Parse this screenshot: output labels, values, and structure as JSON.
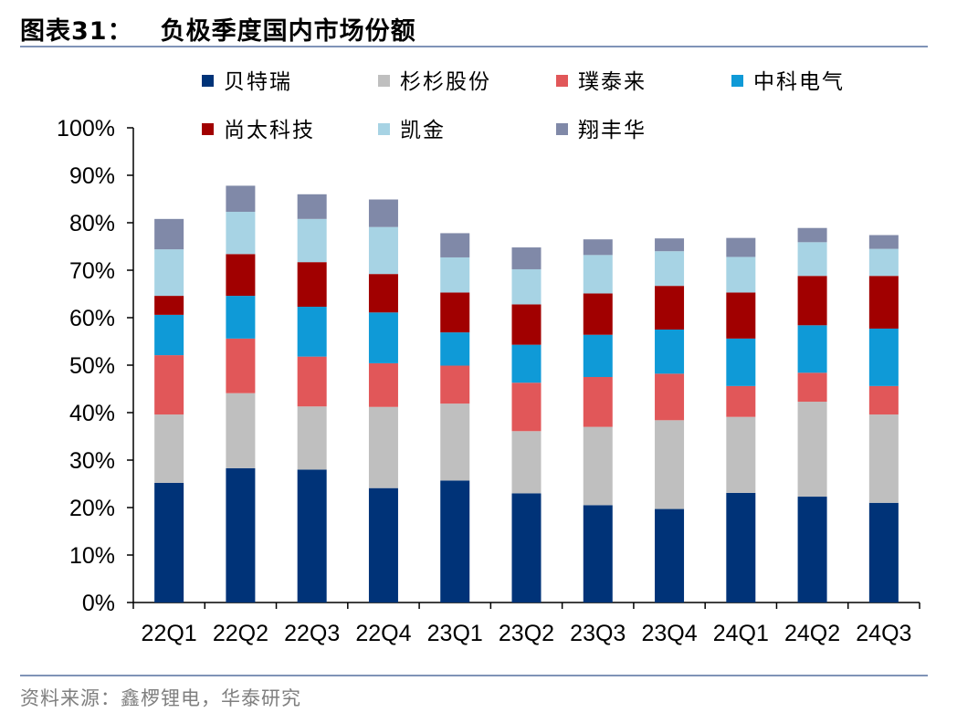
{
  "figure": {
    "label": "图表31：",
    "title": "负极季度国内市场份额",
    "source": "资料来源：鑫椤锂电，华泰研究"
  },
  "chart_data": {
    "type": "bar",
    "stacked": true,
    "title": "负极季度国内市场份额",
    "xlabel": "",
    "ylabel": "",
    "ylim": [
      0,
      100
    ],
    "y_ticks": [
      0,
      10,
      20,
      30,
      40,
      50,
      60,
      70,
      80,
      90,
      100
    ],
    "y_tick_labels": [
      "0%",
      "10%",
      "20%",
      "30%",
      "40%",
      "50%",
      "60%",
      "70%",
      "80%",
      "90%",
      "100%"
    ],
    "grid": false,
    "legend_position": "top",
    "categories": [
      "22Q1",
      "22Q2",
      "22Q3",
      "22Q4",
      "23Q1",
      "23Q2",
      "23Q3",
      "23Q4",
      "24Q1",
      "24Q2",
      "24Q3"
    ],
    "series": [
      {
        "name": "贝特瑞",
        "color": "#003378",
        "values": [
          25.2,
          28.3,
          28.0,
          24.1,
          25.7,
          23.0,
          20.5,
          19.7,
          23.1,
          22.3,
          21.0
        ]
      },
      {
        "name": "杉杉股份",
        "color": "#bfbfbf",
        "values": [
          14.4,
          15.8,
          13.3,
          17.1,
          16.2,
          13.1,
          16.5,
          18.7,
          16.0,
          20.0,
          18.6
        ]
      },
      {
        "name": "璞泰来",
        "color": "#e15759",
        "values": [
          12.5,
          11.5,
          10.5,
          9.2,
          8.0,
          10.2,
          10.5,
          9.8,
          6.5,
          6.1,
          6.0
        ]
      },
      {
        "name": "中科电气",
        "color": "#0f9ad7",
        "values": [
          8.5,
          9.0,
          10.5,
          10.7,
          7.0,
          8.0,
          8.9,
          9.3,
          10.0,
          10.0,
          12.1
        ]
      },
      {
        "name": "尚太科技",
        "color": "#a10000",
        "values": [
          4.0,
          8.8,
          9.4,
          8.1,
          8.4,
          8.5,
          8.7,
          9.2,
          9.7,
          10.4,
          11.1
        ]
      },
      {
        "name": "凯金",
        "color": "#a7d3e4",
        "values": [
          9.8,
          8.9,
          9.1,
          9.9,
          7.4,
          7.4,
          8.1,
          7.3,
          7.5,
          7.1,
          5.7
        ]
      },
      {
        "name": "翔丰华",
        "color": "#8089a8",
        "values": [
          6.4,
          5.5,
          5.2,
          5.8,
          5.1,
          4.6,
          3.3,
          2.7,
          4.0,
          3.0,
          2.9
        ]
      }
    ]
  }
}
